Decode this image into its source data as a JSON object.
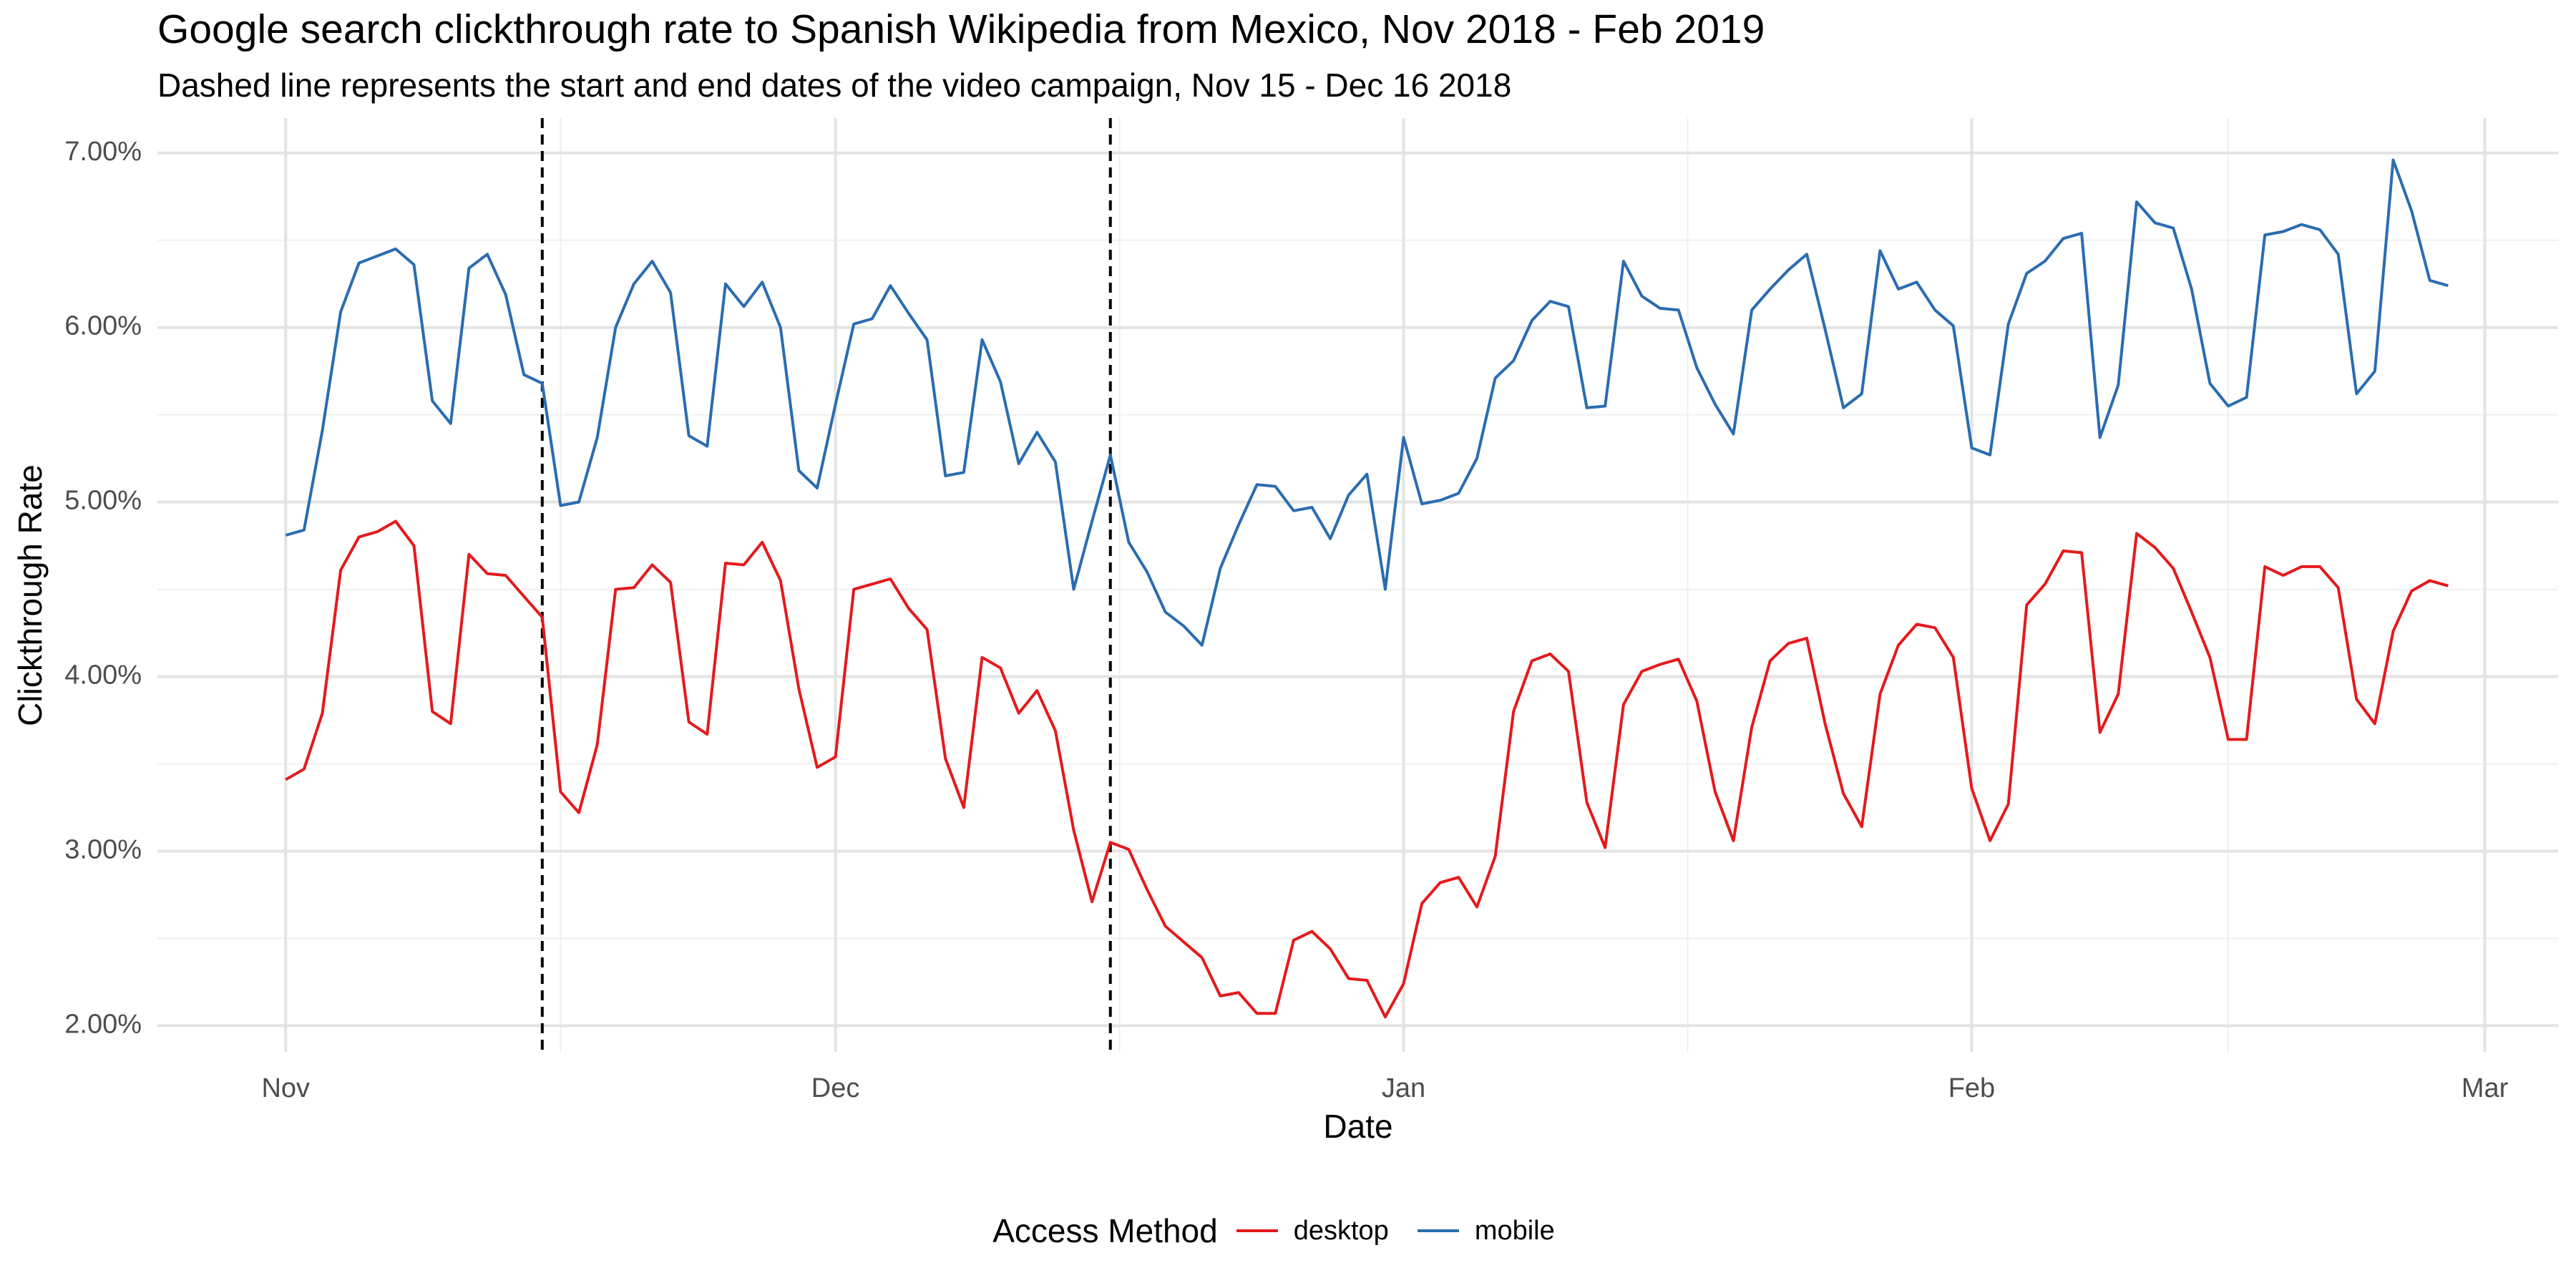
{
  "title": "Google search clickthrough rate to Spanish Wikipedia from Mexico, Nov 2018 - Feb 2019",
  "subtitle": "Dashed line represents the start and end dates of the video campaign, Nov 15 - Dec 16 2018",
  "legend": {
    "title": "Access Method",
    "items": [
      {
        "label": "desktop",
        "color": "#e41a1c"
      },
      {
        "label": "mobile",
        "color": "#2b6cb0"
      }
    ]
  },
  "chart_data": {
    "type": "line",
    "title": "Google search clickthrough rate to Spanish Wikipedia from Mexico, Nov 2018 - Feb 2019",
    "subtitle": "Dashed line represents the start and end dates of the video campaign, Nov 15 - Dec 16 2018",
    "xlabel": "Date",
    "ylabel": "Clickthrough Rate",
    "x_start": "2018-11-01",
    "x_end": "2019-02-27",
    "xlim": [
      "2018-10-25",
      "2019-03-05"
    ],
    "ylim": [
      0.0185,
      0.072
    ],
    "x_ticks": [
      {
        "label": "Nov",
        "date": "2018-11-01"
      },
      {
        "label": "Dec",
        "date": "2018-12-01"
      },
      {
        "label": "Jan",
        "date": "2019-01-01"
      },
      {
        "label": "Feb",
        "date": "2019-02-01"
      },
      {
        "label": "Mar",
        "date": "2019-03-01"
      }
    ],
    "y_ticks": [
      {
        "label": "2.00%",
        "value": 0.02
      },
      {
        "label": "3.00%",
        "value": 0.03
      },
      {
        "label": "4.00%",
        "value": 0.04
      },
      {
        "label": "5.00%",
        "value": 0.05
      },
      {
        "label": "6.00%",
        "value": 0.06
      },
      {
        "label": "7.00%",
        "value": 0.07
      }
    ],
    "vlines": [
      {
        "date": "2018-11-15",
        "style": "dashed",
        "color": "#000000"
      },
      {
        "date": "2018-12-16",
        "style": "dashed",
        "color": "#000000"
      }
    ],
    "grid": true,
    "legend_position": "bottom",
    "series": [
      {
        "name": "desktop",
        "color": "#e41a1c",
        "values": [
          0.0341,
          0.0347,
          0.0379,
          0.0461,
          0.048,
          0.0483,
          0.0489,
          0.0475,
          0.038,
          0.0373,
          0.047,
          0.0459,
          0.0458,
          0.0446,
          0.0434,
          0.0334,
          0.0322,
          0.0361,
          0.045,
          0.0451,
          0.0464,
          0.0454,
          0.0374,
          0.0367,
          0.0465,
          0.0464,
          0.0477,
          0.0455,
          0.0393,
          0.0348,
          0.0354,
          0.045,
          0.0453,
          0.0456,
          0.0439,
          0.0427,
          0.0353,
          0.0325,
          0.0411,
          0.0405,
          0.0379,
          0.0392,
          0.0369,
          0.0312,
          0.0271,
          0.0305,
          0.0301,
          0.0278,
          0.0257,
          0.0248,
          0.0239,
          0.0217,
          0.0219,
          0.0207,
          0.0207,
          0.0249,
          0.0254,
          0.0244,
          0.0227,
          0.0226,
          0.0205,
          0.0224,
          0.027,
          0.0282,
          0.0285,
          0.0268,
          0.0297,
          0.038,
          0.0409,
          0.0413,
          0.0403,
          0.0328,
          0.0302,
          0.0384,
          0.0403,
          0.0407,
          0.041,
          0.0386,
          0.0334,
          0.0306,
          0.0371,
          0.0409,
          0.0419,
          0.0422,
          0.0373,
          0.0333,
          0.0314,
          0.039,
          0.0418,
          0.043,
          0.0428,
          0.0411,
          0.0336,
          0.0306,
          0.0327,
          0.0441,
          0.0453,
          0.0472,
          0.0471,
          0.0368,
          0.039,
          0.0482,
          0.0474,
          0.0462,
          0.0437,
          0.0411,
          0.0364,
          0.0364,
          0.0463,
          0.0458,
          0.0463,
          0.0463,
          0.0451,
          0.0387,
          0.0373,
          0.0426,
          0.0449,
          0.0455,
          0.0452
        ]
      },
      {
        "name": "mobile",
        "color": "#2b6cb0",
        "values": [
          0.0481,
          0.0484,
          0.0541,
          0.0609,
          0.0637,
          0.0641,
          0.0645,
          0.0636,
          0.0558,
          0.0545,
          0.0634,
          0.0642,
          0.0619,
          0.0573,
          0.0568,
          0.0498,
          0.05,
          0.0537,
          0.06,
          0.0625,
          0.0638,
          0.062,
          0.0538,
          0.0532,
          0.0625,
          0.0612,
          0.0626,
          0.06,
          0.0518,
          0.0508,
          0.0556,
          0.0602,
          0.0605,
          0.0624,
          0.0608,
          0.0593,
          0.0515,
          0.0517,
          0.0593,
          0.0569,
          0.0522,
          0.054,
          0.0523,
          0.045,
          0.0489,
          0.0527,
          0.0477,
          0.046,
          0.0437,
          0.0429,
          0.0418,
          0.0462,
          0.0487,
          0.051,
          0.0509,
          0.0495,
          0.0497,
          0.0479,
          0.0504,
          0.0516,
          0.045,
          0.0537,
          0.0499,
          0.0501,
          0.0505,
          0.0525,
          0.0571,
          0.0581,
          0.0604,
          0.0615,
          0.0612,
          0.0554,
          0.0555,
          0.0638,
          0.0618,
          0.0611,
          0.061,
          0.0577,
          0.0556,
          0.0539,
          0.061,
          0.0622,
          0.0633,
          0.0642,
          0.0599,
          0.0554,
          0.0562,
          0.0644,
          0.0622,
          0.0626,
          0.061,
          0.0601,
          0.0531,
          0.0527,
          0.0602,
          0.0631,
          0.0638,
          0.0651,
          0.0654,
          0.0537,
          0.0567,
          0.0672,
          0.066,
          0.0657,
          0.0622,
          0.0568,
          0.0555,
          0.056,
          0.0653,
          0.0655,
          0.0659,
          0.0656,
          0.0642,
          0.0562,
          0.0575,
          0.0696,
          0.0667,
          0.0627,
          0.0624
        ]
      }
    ]
  }
}
